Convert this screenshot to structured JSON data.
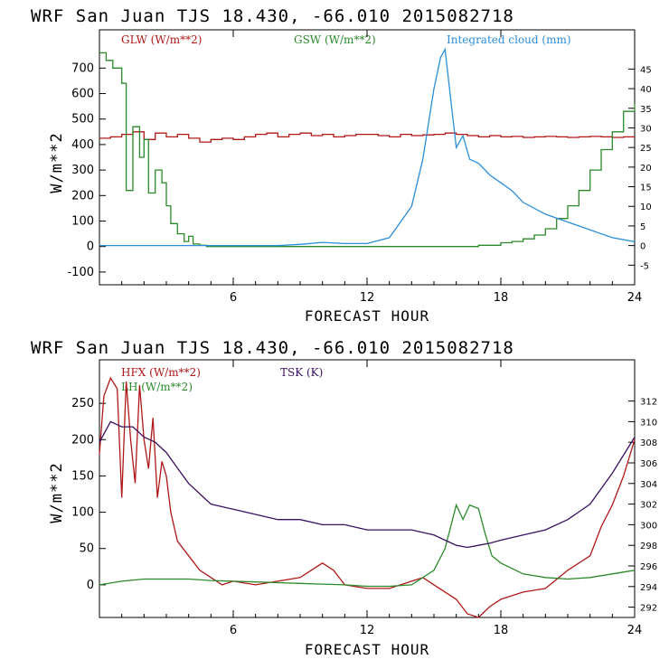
{
  "colors": {
    "red": "#b01818",
    "green": "#2a8a2a",
    "blue": "#2a8ed8",
    "purple": "#3a1060",
    "axis": "#000000"
  },
  "chart_data": [
    {
      "type": "line",
      "title": "WRF  San Juan TJS  18.430, -66.010  2015082718",
      "xlabel": "FORECAST HOUR",
      "ylabel": "W/m**2",
      "xlim": [
        0,
        24
      ],
      "ylim": [
        -150,
        850
      ],
      "y2lim": [
        -10,
        55
      ],
      "x_ticks": [
        "6",
        "12",
        "18",
        "24"
      ],
      "y_ticks": [
        "-100",
        "0",
        "100",
        "200",
        "300",
        "400",
        "500",
        "600",
        "700"
      ],
      "y2_ticks": [
        "-5",
        "0",
        "5",
        "10",
        "15",
        "20",
        "25",
        "30",
        "35",
        "40",
        "45"
      ],
      "series": [
        {
          "name": "GLW (W/m**2)",
          "color": "#b01818",
          "axis": "left",
          "step": true,
          "x": [
            0,
            0.5,
            1,
            1.5,
            2,
            2.5,
            3,
            3.5,
            4,
            4.5,
            5,
            5.5,
            6,
            6.5,
            7,
            7.5,
            8,
            8.5,
            9,
            9.5,
            10,
            10.5,
            11,
            11.5,
            12,
            12.5,
            13,
            13.5,
            14,
            14.5,
            15,
            15.5,
            16,
            16.5,
            17,
            17.5,
            18,
            18.5,
            19,
            19.5,
            20,
            20.5,
            21,
            21.5,
            22,
            22.5,
            23,
            23.5,
            24
          ],
          "y": [
            425,
            430,
            440,
            450,
            420,
            445,
            430,
            440,
            425,
            410,
            420,
            425,
            420,
            430,
            440,
            445,
            430,
            440,
            445,
            435,
            440,
            430,
            435,
            440,
            440,
            435,
            430,
            440,
            435,
            438,
            440,
            445,
            440,
            435,
            430,
            435,
            430,
            432,
            428,
            430,
            432,
            430,
            428,
            430,
            432,
            430,
            428,
            430,
            432
          ]
        },
        {
          "name": "GSW (W/m**2)",
          "color": "#2a8a2a",
          "axis": "left",
          "step": true,
          "x": [
            0,
            0.3,
            0.6,
            1,
            1.2,
            1.5,
            1.8,
            2,
            2.2,
            2.5,
            2.8,
            3,
            3.2,
            3.5,
            3.8,
            4,
            4.2,
            4.5,
            4.8,
            5,
            6,
            12,
            13,
            14,
            15,
            16,
            17,
            18,
            18.5,
            19,
            19.5,
            20,
            20.5,
            21,
            21.5,
            22,
            22.5,
            23,
            23.5,
            24
          ],
          "y": [
            760,
            730,
            700,
            640,
            220,
            470,
            350,
            420,
            210,
            300,
            250,
            160,
            90,
            50,
            20,
            40,
            10,
            5,
            0,
            0,
            0,
            0,
            0,
            0,
            0,
            0,
            5,
            15,
            20,
            30,
            45,
            70,
            110,
            160,
            220,
            300,
            380,
            450,
            530,
            560
          ]
        },
        {
          "name": "Integrated cloud (mm)",
          "color": "#2a8ed8",
          "axis": "right",
          "x": [
            0,
            8,
            9,
            10,
            11,
            12,
            13,
            13.5,
            14,
            14.5,
            15,
            15.3,
            15.5,
            15.8,
            16,
            16.3,
            16.6,
            17,
            17.5,
            18,
            18.5,
            19,
            20,
            21,
            22,
            23,
            24
          ],
          "y": [
            0,
            0,
            0.3,
            0.8,
            0.5,
            0.5,
            2,
            6,
            10,
            22,
            40,
            48,
            50,
            35,
            25,
            28,
            22,
            21,
            18,
            16,
            14,
            11,
            8,
            6,
            4,
            2,
            1
          ]
        }
      ]
    },
    {
      "type": "line",
      "title": "WRF  San Juan TJS  18.430, -66.010  2015082718",
      "xlabel": "FORECAST HOUR",
      "ylabel": "W/m**2",
      "xlim": [
        0,
        24
      ],
      "ylim": [
        -45,
        310
      ],
      "y2lim": [
        291,
        316
      ],
      "x_ticks": [
        "6",
        "12",
        "18",
        "24"
      ],
      "y_ticks": [
        "0",
        "50",
        "100",
        "150",
        "200",
        "250"
      ],
      "y2_ticks": [
        "292",
        "294",
        "296",
        "298",
        "300",
        "302",
        "304",
        "306",
        "308",
        "310",
        "312"
      ],
      "series": [
        {
          "name": "HFX (W/m**2)",
          "color": "#b01818",
          "axis": "left",
          "x": [
            0,
            0.2,
            0.5,
            0.8,
            1,
            1.2,
            1.4,
            1.6,
            1.8,
            2,
            2.2,
            2.4,
            2.6,
            2.8,
            3,
            3.2,
            3.5,
            4,
            4.5,
            5,
            5.5,
            6,
            7,
            8,
            9,
            9.5,
            10,
            10.5,
            11,
            12,
            13,
            14,
            14.5,
            15,
            15.5,
            16,
            16.5,
            17,
            17.5,
            18,
            19,
            20,
            21,
            22,
            22.5,
            23,
            23.5,
            24
          ],
          "y": [
            180,
            260,
            285,
            270,
            120,
            280,
            200,
            140,
            275,
            200,
            160,
            230,
            120,
            170,
            150,
            100,
            60,
            40,
            20,
            10,
            0,
            5,
            0,
            5,
            10,
            20,
            30,
            20,
            0,
            -5,
            -5,
            5,
            10,
            0,
            -10,
            -20,
            -40,
            -45,
            -30,
            -20,
            -10,
            -5,
            20,
            40,
            80,
            110,
            150,
            200
          ]
        },
        {
          "name": "LH (W/m**2)",
          "color": "#2a8a2a",
          "axis": "left",
          "x": [
            0,
            1,
            2,
            3,
            4,
            5,
            6,
            7,
            8,
            9,
            10,
            11,
            12,
            13,
            14,
            15,
            15.5,
            16,
            16.3,
            16.6,
            17,
            17.3,
            17.6,
            18,
            19,
            20,
            21,
            22,
            23,
            24
          ],
          "y": [
            0,
            5,
            8,
            8,
            8,
            6,
            5,
            4,
            3,
            2,
            1,
            0,
            -2,
            -2,
            0,
            20,
            50,
            110,
            90,
            110,
            105,
            70,
            40,
            30,
            15,
            10,
            8,
            10,
            15,
            20
          ]
        },
        {
          "name": "TSK (K)",
          "color": "#3a1060",
          "axis": "right",
          "x": [
            0,
            0.5,
            1,
            1.5,
            2,
            2.5,
            3,
            3.5,
            4,
            5,
            6,
            7,
            8,
            9,
            10,
            11,
            12,
            13,
            14,
            15,
            15.5,
            16,
            16.5,
            17,
            17.5,
            18,
            19,
            20,
            21,
            22,
            23,
            24
          ],
          "y": [
            308,
            310,
            309.5,
            309.5,
            308.5,
            308,
            307,
            305.5,
            304,
            302,
            301.5,
            301,
            300.5,
            300.5,
            300,
            300,
            299.5,
            299.5,
            299.5,
            299,
            298.5,
            298,
            297.8,
            298,
            298.2,
            298.5,
            299,
            299.5,
            300.5,
            302,
            305,
            308.5
          ]
        }
      ]
    }
  ]
}
